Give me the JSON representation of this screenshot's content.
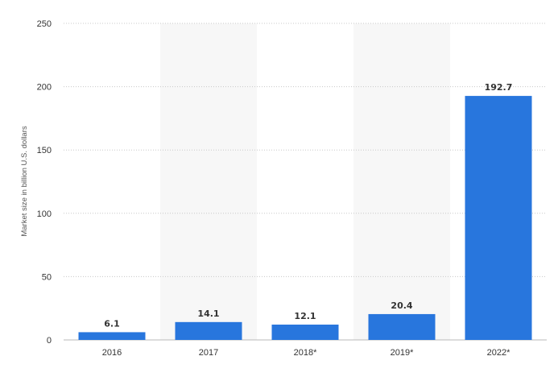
{
  "chart_data": {
    "type": "bar",
    "categories": [
      "2016",
      "2017",
      "2018*",
      "2019*",
      "2022*"
    ],
    "values": [
      6.1,
      14.1,
      12.1,
      20.4,
      192.7
    ],
    "value_labels": [
      "6.1",
      "14.1",
      "12.1",
      "20.4",
      "192.7"
    ],
    "title": "",
    "xlabel": "",
    "ylabel": "Market size in billion U.S. dollars",
    "ylim": [
      0,
      250
    ],
    "yticks": [
      "0",
      "50",
      "100",
      "150",
      "200",
      "250"
    ],
    "grid": true,
    "legend": "none",
    "bar_color": "#2876dd",
    "alternate_band_color": "#f7f7f7",
    "grid_color": "#c8c8c8"
  }
}
